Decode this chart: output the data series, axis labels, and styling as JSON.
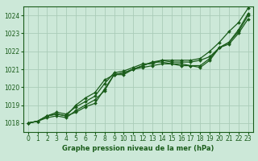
{
  "title": "Graphe pression niveau de la mer (hPa)",
  "bg_color": "#cce8d8",
  "grid_color": "#aaccb8",
  "line_color": "#1a5c1a",
  "marker_color": "#1a5c1a",
  "xlim": [
    -0.5,
    23.5
  ],
  "ylim": [
    1017.5,
    1024.5
  ],
  "xticks": [
    0,
    1,
    2,
    3,
    4,
    5,
    6,
    7,
    8,
    9,
    10,
    11,
    12,
    13,
    14,
    15,
    16,
    17,
    18,
    19,
    20,
    21,
    22,
    23
  ],
  "yticks": [
    1018,
    1019,
    1020,
    1021,
    1022,
    1023,
    1024
  ],
  "series": [
    [
      1018.0,
      1018.1,
      1018.4,
      1018.5,
      1018.4,
      1018.6,
      1018.9,
      1019.1,
      1019.9,
      1020.7,
      1020.8,
      1021.0,
      1021.1,
      1021.2,
      1021.3,
      1021.3,
      1021.2,
      1021.2,
      1021.1,
      1021.5,
      1022.2,
      1022.4,
      1023.0,
      1023.8
    ],
    [
      1018.0,
      1018.1,
      1018.3,
      1018.4,
      1018.3,
      1018.7,
      1019.0,
      1019.3,
      1019.8,
      1020.7,
      1020.7,
      1021.0,
      1021.2,
      1021.4,
      1021.4,
      1021.3,
      1021.3,
      1021.2,
      1021.2,
      1021.6,
      1022.2,
      1022.5,
      1023.1,
      1024.0
    ],
    [
      1018.0,
      1018.1,
      1018.4,
      1018.6,
      1018.5,
      1018.9,
      1019.2,
      1019.5,
      1020.2,
      1020.8,
      1020.9,
      1021.1,
      1021.3,
      1021.3,
      1021.5,
      1021.4,
      1021.4,
      1021.4,
      1021.5,
      1021.7,
      1022.2,
      1022.5,
      1023.2,
      1024.1
    ],
    [
      1018.0,
      1018.1,
      1018.4,
      1018.5,
      1018.4,
      1019.0,
      1019.4,
      1019.7,
      1020.4,
      1020.7,
      1020.8,
      1021.0,
      1021.2,
      1021.4,
      1021.5,
      1021.5,
      1021.5,
      1021.5,
      1021.6,
      1022.0,
      1022.5,
      1023.1,
      1023.6,
      1024.4
    ]
  ],
  "figsize": [
    3.2,
    2.0
  ],
  "dpi": 100,
  "tick_fontsize": 5.5,
  "label_fontsize": 6.0,
  "linewidth": 0.9,
  "markersize": 2.0
}
